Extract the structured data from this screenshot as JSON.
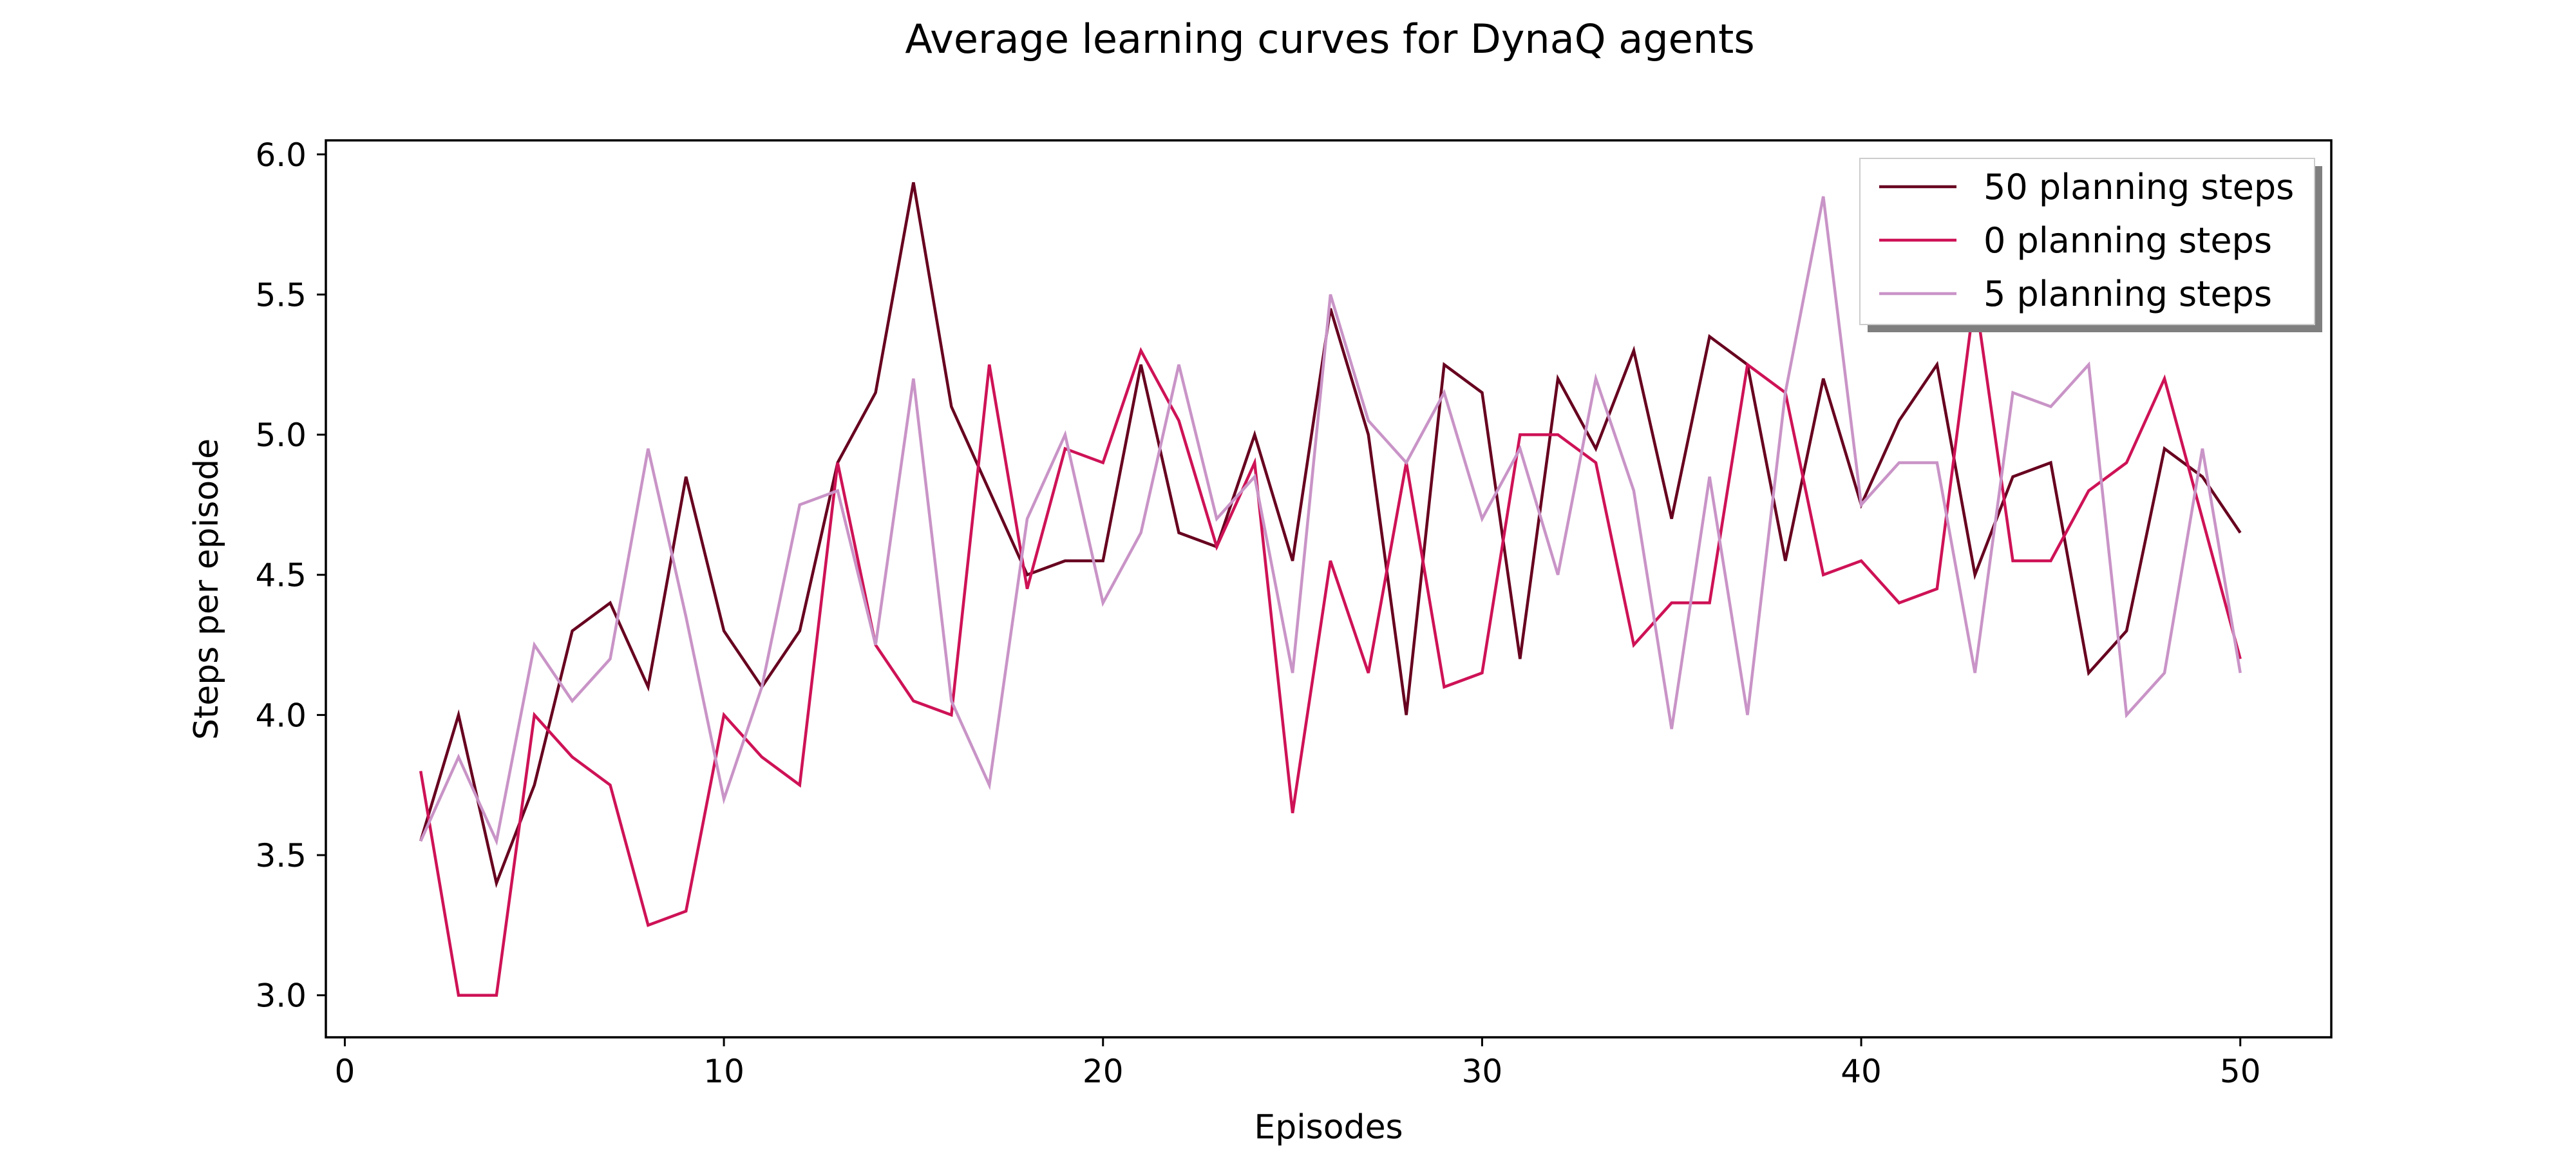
{
  "chart_data": {
    "type": "line",
    "title": "Average learning curves for DynaQ agents",
    "xlabel": "Episodes",
    "ylabel": "Steps per episode",
    "xlim": [
      -0.5,
      52.4
    ],
    "ylim": [
      2.85,
      6.05
    ],
    "xticks": [
      0,
      10,
      20,
      30,
      40,
      50
    ],
    "xtick_labels": [
      "0",
      "10",
      "20",
      "30",
      "40",
      "50"
    ],
    "yticks": [
      3.0,
      3.5,
      4.0,
      4.5,
      5.0,
      5.5,
      6.0
    ],
    "ytick_labels": [
      "3.0",
      "3.5",
      "4.0",
      "4.5",
      "5.0",
      "5.5",
      "6.0"
    ],
    "grid": false,
    "legend_position": "top-right",
    "x": [
      2,
      3,
      4,
      5,
      6,
      7,
      8,
      9,
      10,
      11,
      12,
      13,
      14,
      15,
      16,
      17,
      18,
      19,
      20,
      21,
      22,
      23,
      24,
      25,
      26,
      27,
      28,
      29,
      30,
      31,
      32,
      33,
      34,
      35,
      36,
      37,
      38,
      39,
      40,
      41,
      42,
      43,
      44,
      45,
      46,
      47,
      48,
      49,
      50
    ],
    "series": [
      {
        "name": "50 planning steps",
        "color": "#67001f",
        "values": [
          3.55,
          4.0,
          3.4,
          3.75,
          4.3,
          4.4,
          4.1,
          4.85,
          4.3,
          4.1,
          4.3,
          4.9,
          5.15,
          5.9,
          5.1,
          4.8,
          4.5,
          4.55,
          4.55,
          5.25,
          4.65,
          4.6,
          5.0,
          4.55,
          5.45,
          5.0,
          4.0,
          5.25,
          5.15,
          4.2,
          5.2,
          4.95,
          5.3,
          4.7,
          5.35,
          5.25,
          4.55,
          5.2,
          4.75,
          5.05,
          5.25,
          4.5,
          4.85,
          4.9,
          4.15,
          4.3,
          4.95,
          4.85,
          4.65
        ]
      },
      {
        "name": "0 planning steps",
        "color": "#ce1256",
        "values": [
          3.8,
          3.0,
          3.0,
          4.0,
          3.85,
          3.75,
          3.25,
          3.3,
          4.0,
          3.85,
          3.75,
          4.9,
          4.25,
          4.05,
          4.0,
          5.25,
          4.45,
          4.95,
          4.9,
          5.3,
          5.05,
          4.6,
          4.9,
          3.65,
          4.55,
          4.15,
          4.9,
          4.1,
          4.15,
          5.0,
          5.0,
          4.9,
          4.25,
          4.4,
          4.4,
          5.25,
          5.15,
          4.5,
          4.55,
          4.4,
          4.45,
          5.5,
          4.55,
          4.55,
          4.8,
          4.9,
          5.2,
          4.7,
          4.2
        ]
      },
      {
        "name": "5 planning steps",
        "color": "#c994c7",
        "values": [
          3.55,
          3.85,
          3.55,
          4.25,
          4.05,
          4.2,
          4.95,
          4.35,
          3.7,
          4.1,
          4.75,
          4.8,
          4.25,
          5.2,
          4.05,
          3.75,
          4.7,
          5.0,
          4.4,
          4.65,
          5.25,
          4.7,
          4.85,
          4.15,
          5.5,
          5.05,
          4.9,
          5.15,
          4.7,
          4.95,
          4.5,
          5.2,
          4.8,
          3.95,
          4.85,
          4.0,
          5.15,
          5.85,
          4.75,
          4.9,
          4.9,
          4.15,
          5.15,
          5.1,
          5.25,
          4.0,
          4.15,
          4.95,
          4.15
        ]
      }
    ]
  }
}
